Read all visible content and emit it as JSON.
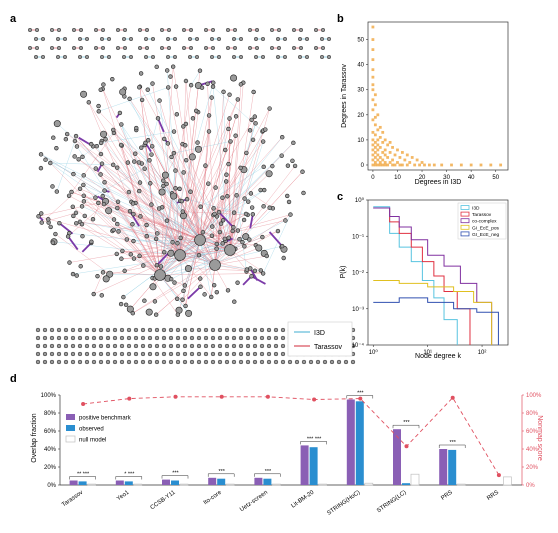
{
  "panels": {
    "a": "a",
    "b": "b",
    "c": "c",
    "d": "d"
  },
  "colors": {
    "i3d": "#7fc8e0",
    "tarassov": "#e0707a",
    "node_fill": "#9a9a9a",
    "node_stroke": "#222222",
    "purple": "#7b3aa8",
    "orange": "#f0a640",
    "bar_positive": "#8a5fb5",
    "bar_observed": "#2a8ed0",
    "bar_null": "#c0c0c0",
    "nonmap": "#e05060",
    "deg_i3d": "#58c4e0",
    "deg_tarassov": "#e03040",
    "deg_cocomplex": "#8030a0",
    "deg_gi_pos": "#e0c020",
    "deg_gi_neg": "#3050b0"
  },
  "network": {
    "legend": [
      {
        "label": "I3D",
        "color": "#7fc8e0"
      },
      {
        "label": "Tarassov",
        "color": "#e0707a"
      }
    ]
  },
  "chart_data": [
    {
      "panel": "b",
      "type": "scatter",
      "xlabel": "Degrees in I3D",
      "ylabel": "Degrees in Tarassov",
      "xlim": [
        -2,
        55
      ],
      "ylim": [
        -2,
        57
      ],
      "xticks": [
        0,
        10,
        20,
        30,
        40,
        50
      ],
      "yticks": [
        0,
        10,
        20,
        30,
        40,
        50
      ],
      "points": [
        [
          0,
          55
        ],
        [
          0,
          50
        ],
        [
          0,
          46
        ],
        [
          0,
          42
        ],
        [
          0,
          38
        ],
        [
          0,
          35
        ],
        [
          0,
          32
        ],
        [
          0,
          30
        ],
        [
          1,
          28
        ],
        [
          0,
          26
        ],
        [
          1,
          24
        ],
        [
          0,
          22
        ],
        [
          2,
          20
        ],
        [
          1,
          19
        ],
        [
          0,
          18
        ],
        [
          1,
          16
        ],
        [
          3,
          15
        ],
        [
          2,
          14
        ],
        [
          0,
          13
        ],
        [
          4,
          13
        ],
        [
          1,
          12
        ],
        [
          3,
          11
        ],
        [
          0,
          10
        ],
        [
          2,
          10
        ],
        [
          5,
          10
        ],
        [
          1,
          9
        ],
        [
          4,
          9
        ],
        [
          7,
          9
        ],
        [
          0,
          8
        ],
        [
          2,
          8
        ],
        [
          6,
          8
        ],
        [
          1,
          7
        ],
        [
          3,
          7
        ],
        [
          8,
          7
        ],
        [
          0,
          6
        ],
        [
          2,
          6
        ],
        [
          5,
          6
        ],
        [
          10,
          6
        ],
        [
          1,
          5
        ],
        [
          4,
          5
        ],
        [
          7,
          5
        ],
        [
          12,
          5
        ],
        [
          0,
          4
        ],
        [
          2,
          4
        ],
        [
          5,
          4
        ],
        [
          9,
          4
        ],
        [
          14,
          4
        ],
        [
          1,
          3
        ],
        [
          3,
          3
        ],
        [
          6,
          3
        ],
        [
          11,
          3
        ],
        [
          16,
          3
        ],
        [
          0,
          2
        ],
        [
          2,
          2
        ],
        [
          4,
          2
        ],
        [
          8,
          2
        ],
        [
          13,
          2
        ],
        [
          18,
          2
        ],
        [
          1,
          1
        ],
        [
          3,
          1
        ],
        [
          5,
          1
        ],
        [
          7,
          1
        ],
        [
          10,
          1
        ],
        [
          15,
          1
        ],
        [
          20,
          1
        ],
        [
          0,
          0
        ],
        [
          1,
          0
        ],
        [
          2,
          0
        ],
        [
          3,
          0
        ],
        [
          4,
          0
        ],
        [
          5,
          0
        ],
        [
          6,
          0
        ],
        [
          8,
          0
        ],
        [
          9,
          0
        ],
        [
          11,
          0
        ],
        [
          12,
          0
        ],
        [
          14,
          0
        ],
        [
          17,
          0
        ],
        [
          19,
          0
        ],
        [
          21,
          0
        ],
        [
          23,
          0
        ],
        [
          25,
          0
        ],
        [
          28,
          0
        ],
        [
          32,
          0
        ],
        [
          36,
          0
        ],
        [
          40,
          0
        ],
        [
          44,
          0
        ],
        [
          48,
          0
        ],
        [
          52,
          0
        ]
      ]
    },
    {
      "panel": "c",
      "type": "line",
      "xlabel": "Node degree k",
      "ylabel": "P(k)",
      "xscale": "log",
      "yscale": "log",
      "xlim": [
        0.8,
        300
      ],
      "ylim": [
        0.0001,
        1
      ],
      "yticks_labels": [
        "10⁰",
        "10⁻¹",
        "10⁻²",
        "10⁻³",
        "10⁻⁴"
      ],
      "xticks_labels": [
        "10⁰",
        "10¹",
        "10²"
      ],
      "series": [
        {
          "name": "I3D",
          "color": "#58c4e0",
          "steps": [
            [
              1,
              0.65
            ],
            [
              2,
              0.12
            ],
            [
              3,
              0.05
            ],
            [
              5,
              0.02
            ],
            [
              8,
              0.006
            ],
            [
              13,
              0.002
            ],
            [
              20,
              0.0005
            ],
            [
              35,
              0.0001
            ]
          ]
        },
        {
          "name": "Tarassov",
          "color": "#e03040",
          "steps": [
            [
              1,
              0.6
            ],
            [
              2,
              0.25
            ],
            [
              3,
              0.12
            ],
            [
              5,
              0.05
            ],
            [
              8,
              0.02
            ],
            [
              13,
              0.008
            ],
            [
              20,
              0.003
            ],
            [
              35,
              0.001
            ],
            [
              60,
              0.0001
            ]
          ]
        },
        {
          "name": "co-complex",
          "color": "#8030a0",
          "steps": [
            [
              1,
              0.6
            ],
            [
              2,
              0.35
            ],
            [
              3,
              0.18
            ],
            [
              5,
              0.08
            ],
            [
              10,
              0.03
            ],
            [
              20,
              0.015
            ],
            [
              40,
              0.005
            ],
            [
              80,
              0.0015
            ],
            [
              150,
              0.0001
            ]
          ]
        },
        {
          "name": "GI_EcE_pos",
          "color": "#e0c020",
          "steps": [
            [
              1,
              0.006
            ],
            [
              3,
              0.005
            ],
            [
              10,
              0.004
            ],
            [
              30,
              0.003
            ],
            [
              70,
              0.0015
            ],
            [
              150,
              0.0001
            ]
          ]
        },
        {
          "name": "GI_EcE_neg",
          "color": "#3050b0",
          "steps": [
            [
              1,
              0.0015
            ],
            [
              3,
              0.002
            ],
            [
              10,
              0.0015
            ],
            [
              30,
              0.001
            ],
            [
              80,
              0.0008
            ],
            [
              200,
              0.0001
            ]
          ]
        }
      ]
    },
    {
      "panel": "d",
      "type": "bar",
      "ylabel": "Overlap fraction",
      "ylabel_right": "Nonmap score",
      "yticks": [
        "0%",
        "20%",
        "40%",
        "60%",
        "80%",
        "100%"
      ],
      "categories": [
        "Tarassov",
        "Yeo1",
        "CCSB-Y11",
        "Ito-core",
        "Uetz-screen",
        "Lit-BM-20",
        "STRING(HoC)",
        "STRING(LC)",
        "PRS",
        "RRS"
      ],
      "series": [
        {
          "name": "positive benchmark",
          "color": "#8a5fb5",
          "values": [
            5,
            5,
            6,
            8,
            8,
            44,
            95,
            62,
            40,
            0
          ]
        },
        {
          "name": "observed",
          "color": "#2a8ed0",
          "values": [
            4,
            4,
            5,
            7,
            7,
            42,
            93,
            2,
            39,
            0
          ]
        },
        {
          "name": "null model",
          "color": "#c0c0c0",
          "values": [
            1,
            1,
            1,
            1,
            1,
            1,
            2,
            12,
            1,
            9
          ]
        }
      ],
      "nonmap": [
        90,
        96,
        98,
        98,
        98,
        95,
        96,
        43,
        97,
        11
      ],
      "significance": [
        "** ***",
        "* ***",
        "***",
        "***",
        "***",
        "*** ***",
        "***",
        "***",
        "***",
        ""
      ]
    }
  ]
}
